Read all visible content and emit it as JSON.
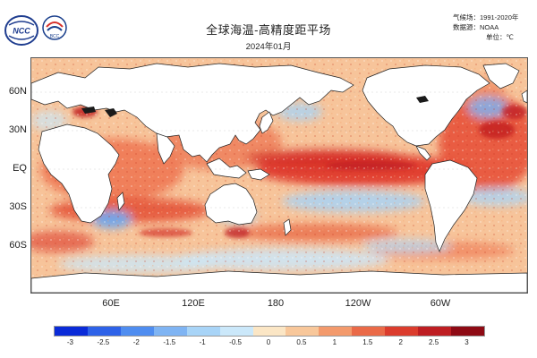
{
  "header": {
    "title": "全球海温-高精度距平场",
    "date": "2024年01月",
    "climatology": "气候场：1991-2020年",
    "dataset": "数据源：NOAA",
    "unit": "单位：℃"
  },
  "logos": {
    "left_logo": "NCC",
    "right_logo": "BCC"
  },
  "map": {
    "latitude_labels": [
      "60N",
      "30N",
      "EQ",
      "30S",
      "60S"
    ],
    "longitude_labels": [
      "60E",
      "120E",
      "180",
      "120W",
      "60W"
    ],
    "colors": {
      "land": "#ffffff",
      "coast": "#222222",
      "lake": "#1a1a1a"
    }
  },
  "colorbar": {
    "labels": [
      "-3",
      "-2.5",
      "-2",
      "-1.5",
      "-1",
      "-0.5",
      "0",
      "0.5",
      "1",
      "1.5",
      "2",
      "2.5",
      "3"
    ],
    "colors": [
      "#0a2bd8",
      "#2e62e8",
      "#4f8df0",
      "#7fb4f3",
      "#a8d4f7",
      "#cbe8fa",
      "#fbe6c5",
      "#f8c79a",
      "#f39a6c",
      "#ea6a48",
      "#db3c2d",
      "#be1e22",
      "#8e0a14"
    ]
  }
}
